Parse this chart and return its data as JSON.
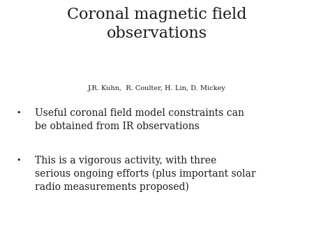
{
  "title": "Coronal magnetic field\nobservations",
  "subtitle": "J.R. Kuhn,  R. Coulter, H. Lin, D. Mickey",
  "bullet1_line1": "Useful coronal field model constraints can",
  "bullet1_line2": "be obtained from IR observations",
  "bullet2_line1": "This is a vigorous activity, with three",
  "bullet2_line2": "serious ongoing efforts (plus important solar",
  "bullet2_line3": "radio measurements proposed)",
  "background_color": "#ffffff",
  "text_color": "#1a1a1a",
  "title_fontsize": 16,
  "subtitle_fontsize": 7,
  "bullet_fontsize": 10,
  "bullet_dot_fontsize": 8,
  "font_family": "DejaVu Serif"
}
